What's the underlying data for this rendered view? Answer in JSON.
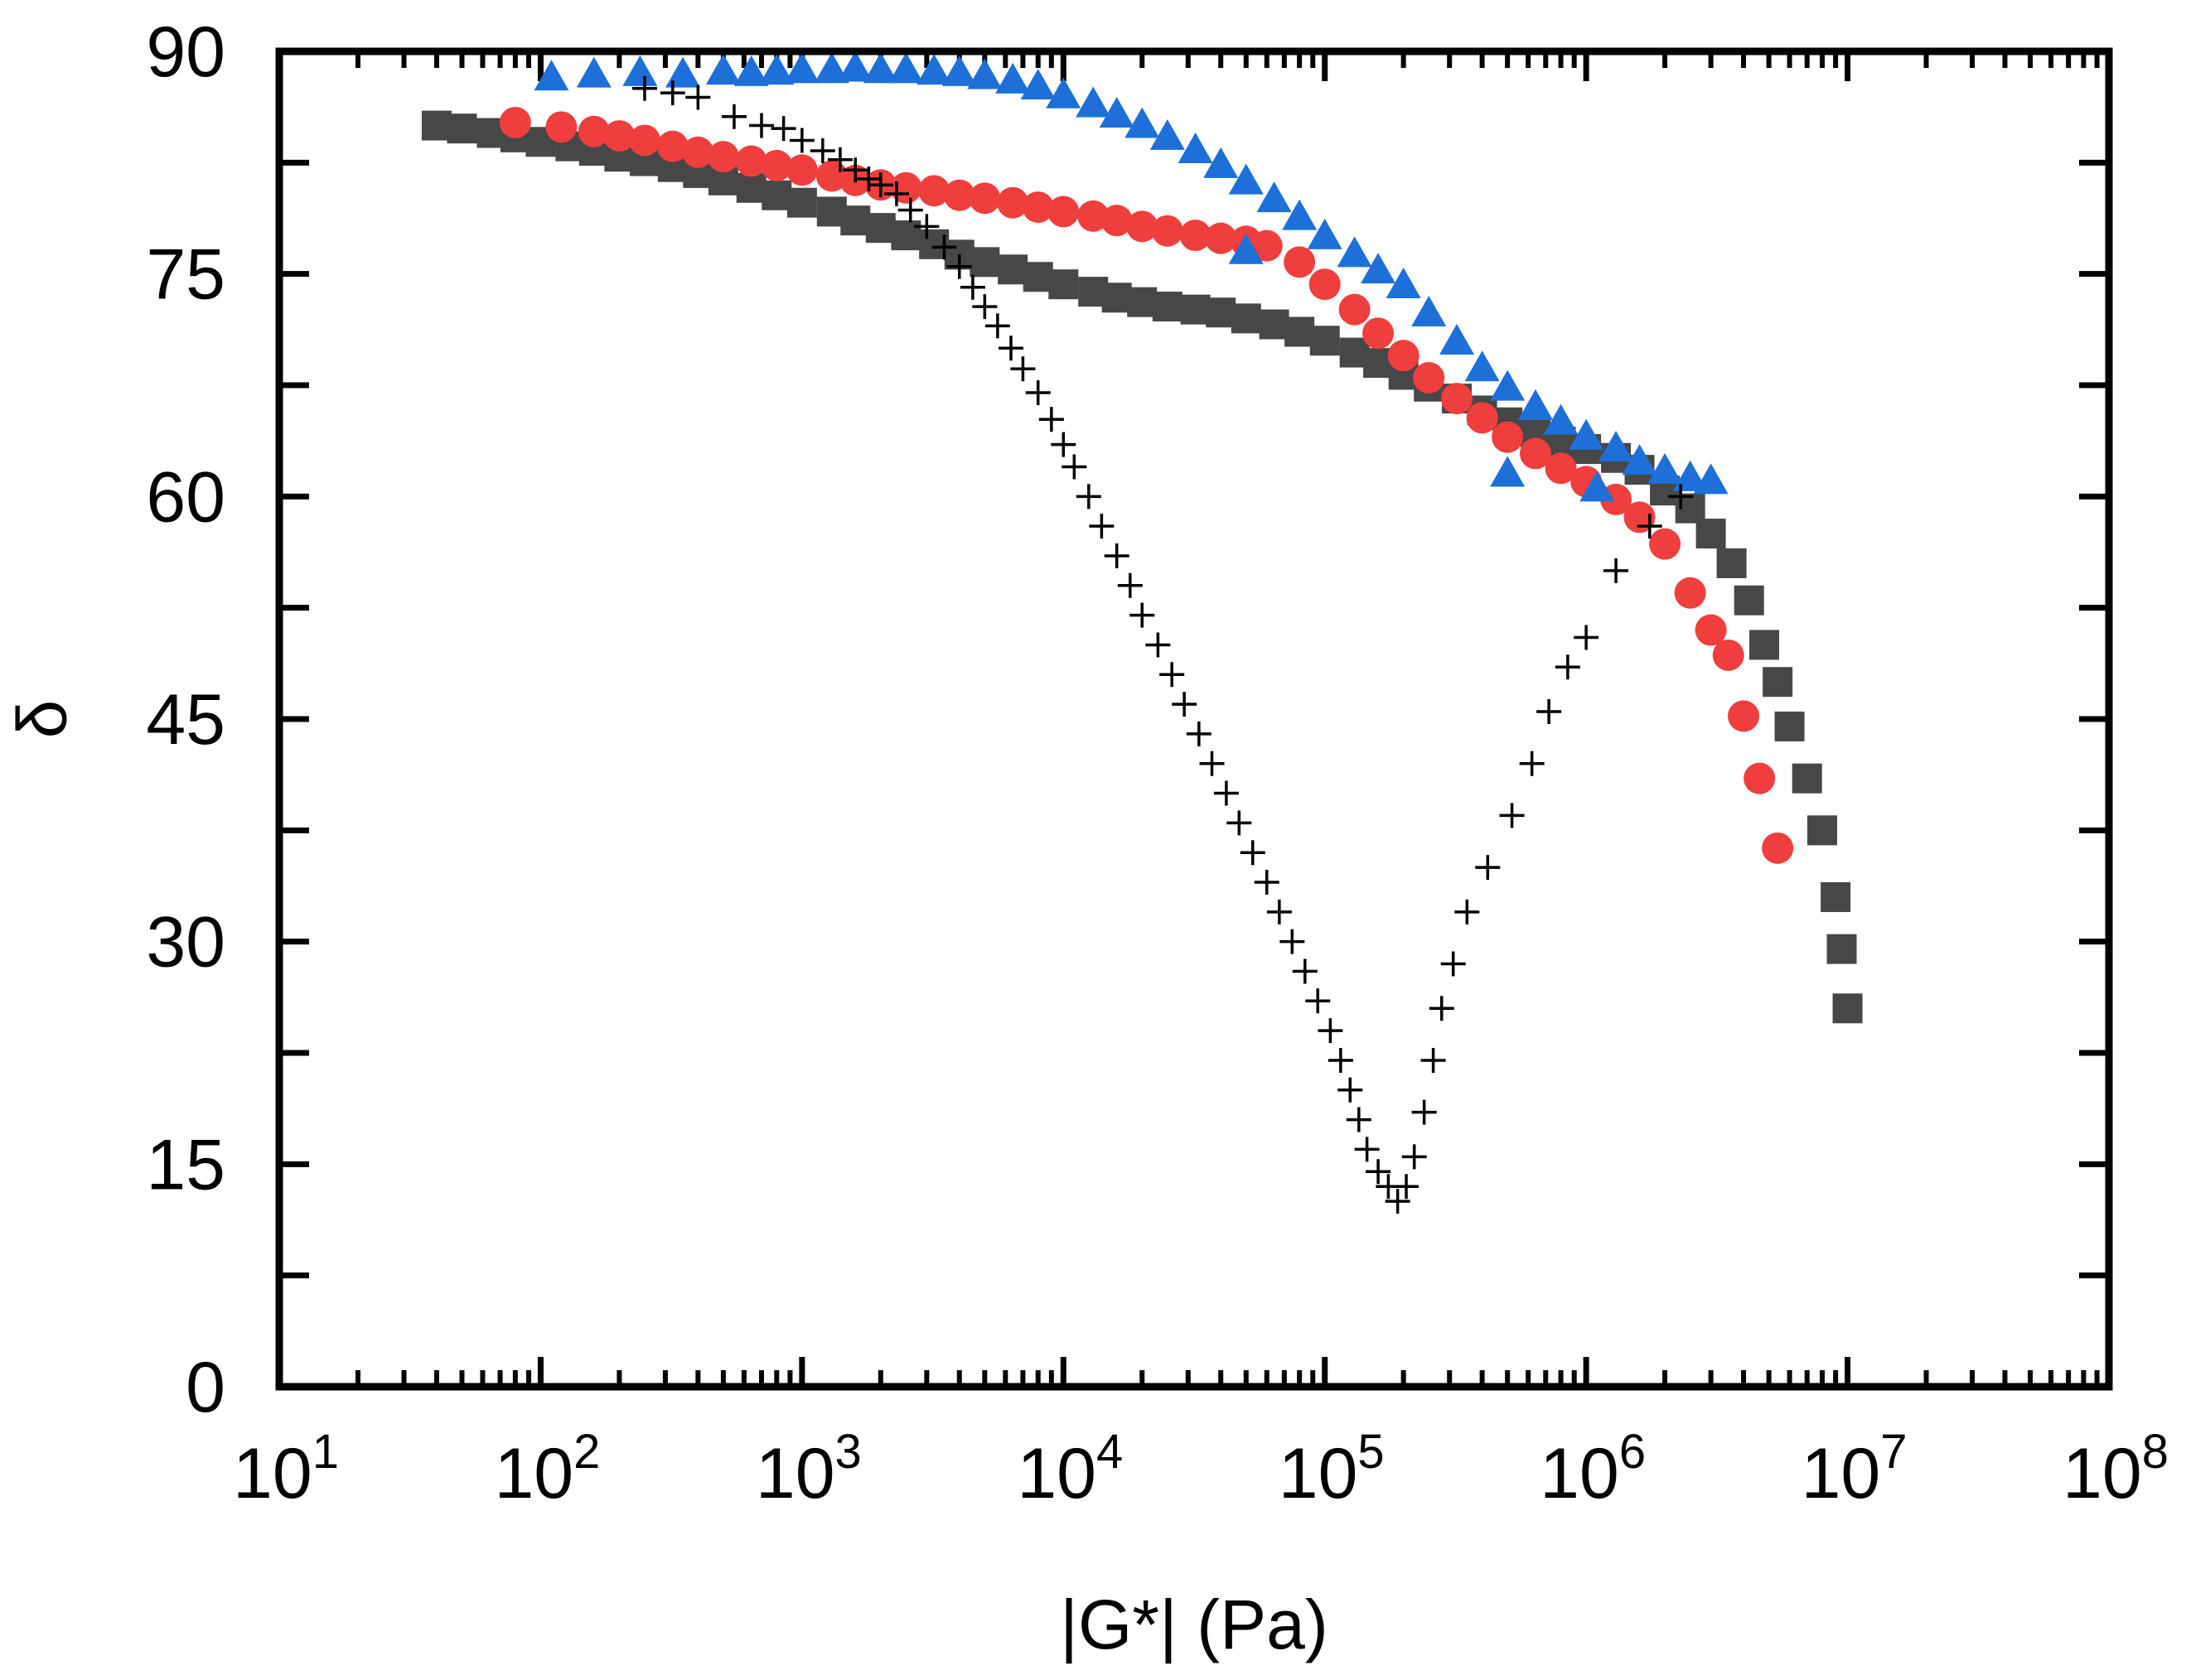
{
  "chart_data": {
    "type": "scatter",
    "title": "",
    "xlabel": "|G*| (Pa)",
    "ylabel": "δ",
    "xscale": "log",
    "xlim": [
      10,
      100000000
    ],
    "ylim": [
      0,
      90
    ],
    "grid": false,
    "x_tick_labels": [
      {
        "value": 10,
        "base": "10",
        "exp": "1"
      },
      {
        "value": 100,
        "base": "10",
        "exp": "2"
      },
      {
        "value": 1000,
        "base": "10",
        "exp": "3"
      },
      {
        "value": 10000,
        "base": "10",
        "exp": "4"
      },
      {
        "value": 100000,
        "base": "10",
        "exp": "5"
      },
      {
        "value": 1000000,
        "base": "10",
        "exp": "6"
      },
      {
        "value": 10000000,
        "base": "10",
        "exp": "7"
      },
      {
        "value": 100000000,
        "base": "10",
        "exp": "8"
      }
    ],
    "y_tick_labels": [
      "0",
      "15",
      "30",
      "45",
      "60",
      "75",
      "90"
    ],
    "y_major_ticks": [
      0,
      15,
      30,
      45,
      60,
      75,
      90
    ],
    "y_minor_ticks": [
      7.5,
      22.5,
      37.5,
      52.5,
      67.5,
      82.5
    ],
    "series": [
      {
        "name": "squares",
        "marker": "square",
        "color": "#474747",
        "points": [
          [
            40,
            85.0
          ],
          [
            50,
            84.8
          ],
          [
            65,
            84.5
          ],
          [
            80,
            84.2
          ],
          [
            100,
            83.9
          ],
          [
            130,
            83.6
          ],
          [
            160,
            83.3
          ],
          [
            200,
            82.9
          ],
          [
            250,
            82.6
          ],
          [
            320,
            82.2
          ],
          [
            400,
            81.8
          ],
          [
            500,
            81.3
          ],
          [
            640,
            80.8
          ],
          [
            800,
            80.3
          ],
          [
            1000,
            79.8
          ],
          [
            1300,
            79.2
          ],
          [
            1600,
            78.6
          ],
          [
            2000,
            78.1
          ],
          [
            2500,
            77.6
          ],
          [
            3200,
            77.0
          ],
          [
            4000,
            76.3
          ],
          [
            5000,
            75.8
          ],
          [
            6400,
            75.3
          ],
          [
            8000,
            74.8
          ],
          [
            10000,
            74.3
          ],
          [
            13000,
            73.8
          ],
          [
            16000,
            73.4
          ],
          [
            20000,
            73.1
          ],
          [
            25000,
            72.8
          ],
          [
            32000,
            72.6
          ],
          [
            40000,
            72.4
          ],
          [
            50000,
            72.0
          ],
          [
            64000,
            71.6
          ],
          [
            80000,
            71.1
          ],
          [
            100000,
            70.5
          ],
          [
            130000,
            69.7
          ],
          [
            160000,
            69.0
          ],
          [
            200000,
            68.2
          ],
          [
            250000,
            67.4
          ],
          [
            320000,
            66.6
          ],
          [
            400000,
            65.8
          ],
          [
            500000,
            65.0
          ],
          [
            640000,
            64.3
          ],
          [
            800000,
            63.7
          ],
          [
            1000000,
            63.2
          ],
          [
            1300000,
            62.6
          ],
          [
            1600000,
            61.8
          ],
          [
            2000000,
            60.4
          ],
          [
            2500000,
            59.2
          ],
          [
            3000000,
            57.5
          ],
          [
            3600000,
            55.5
          ],
          [
            4200000,
            53.0
          ],
          [
            4800000,
            50.0
          ],
          [
            5400000,
            47.5
          ],
          [
            6000000,
            44.5
          ],
          [
            7000000,
            41.0
          ],
          [
            8000000,
            37.5
          ],
          [
            9000000,
            33.0
          ],
          [
            9500000,
            29.5
          ],
          [
            10000000,
            25.5
          ]
        ]
      },
      {
        "name": "circles",
        "marker": "circle",
        "color": "#ef3e3e",
        "points": [
          [
            80,
            85.2
          ],
          [
            120,
            84.9
          ],
          [
            160,
            84.6
          ],
          [
            200,
            84.3
          ],
          [
            250,
            84.0
          ],
          [
            320,
            83.6
          ],
          [
            400,
            83.2
          ],
          [
            500,
            82.9
          ],
          [
            640,
            82.6
          ],
          [
            800,
            82.3
          ],
          [
            1000,
            82.0
          ],
          [
            1300,
            81.6
          ],
          [
            1600,
            81.3
          ],
          [
            2000,
            81.0
          ],
          [
            2500,
            80.8
          ],
          [
            3200,
            80.6
          ],
          [
            4000,
            80.3
          ],
          [
            5000,
            80.1
          ],
          [
            6400,
            79.8
          ],
          [
            8000,
            79.5
          ],
          [
            10000,
            79.2
          ],
          [
            13000,
            78.9
          ],
          [
            16000,
            78.6
          ],
          [
            20000,
            78.2
          ],
          [
            25000,
            77.9
          ],
          [
            32000,
            77.6
          ],
          [
            40000,
            77.4
          ],
          [
            50000,
            77.2
          ],
          [
            60000,
            76.9
          ],
          [
            80000,
            75.8
          ],
          [
            100000,
            74.3
          ],
          [
            130000,
            72.6
          ],
          [
            160000,
            71.0
          ],
          [
            200000,
            69.5
          ],
          [
            250000,
            68.0
          ],
          [
            320000,
            66.6
          ],
          [
            400000,
            65.3
          ],
          [
            500000,
            64.0
          ],
          [
            640000,
            62.9
          ],
          [
            800000,
            61.9
          ],
          [
            1000000,
            61.0
          ],
          [
            1300000,
            59.8
          ],
          [
            1600000,
            58.6
          ],
          [
            2000000,
            56.8
          ],
          [
            2500000,
            53.5
          ],
          [
            3000000,
            51.0
          ],
          [
            3500000,
            49.3
          ],
          [
            4000000,
            45.2
          ],
          [
            4600000,
            41.0
          ],
          [
            5400000,
            36.3
          ]
        ]
      },
      {
        "name": "triangles",
        "marker": "triangle",
        "color": "#1f6fd8",
        "points": [
          [
            110,
            88.2
          ],
          [
            160,
            88.4
          ],
          [
            240,
            88.5
          ],
          [
            350,
            88.4
          ],
          [
            500,
            88.6
          ],
          [
            640,
            88.5
          ],
          [
            800,
            88.6
          ],
          [
            1000,
            88.7
          ],
          [
            1300,
            88.7
          ],
          [
            1600,
            88.8
          ],
          [
            2000,
            88.7
          ],
          [
            2500,
            88.7
          ],
          [
            3200,
            88.6
          ],
          [
            4000,
            88.5
          ],
          [
            5000,
            88.3
          ],
          [
            6400,
            88.0
          ],
          [
            8000,
            87.6
          ],
          [
            10000,
            87.0
          ],
          [
            13000,
            86.4
          ],
          [
            16000,
            85.7
          ],
          [
            20000,
            85.0
          ],
          [
            25000,
            84.2
          ],
          [
            32000,
            83.3
          ],
          [
            40000,
            82.3
          ],
          [
            50000,
            81.2
          ],
          [
            64000,
            80.0
          ],
          [
            80000,
            78.8
          ],
          [
            100000,
            77.5
          ],
          [
            130000,
            76.3
          ],
          [
            160000,
            75.2
          ],
          [
            200000,
            74.2
          ],
          [
            250000,
            72.3
          ],
          [
            320000,
            70.4
          ],
          [
            400000,
            68.6
          ],
          [
            500000,
            67.3
          ],
          [
            640000,
            66.0
          ],
          [
            800000,
            65.0
          ],
          [
            1000000,
            64.0
          ],
          [
            1300000,
            63.2
          ],
          [
            1600000,
            62.3
          ],
          [
            2000000,
            61.7
          ],
          [
            2500000,
            61.2
          ],
          [
            3000000,
            61.0
          ],
          [
            50000,
            76.5
          ],
          [
            500000,
            61.5
          ],
          [
            1100000,
            60.5
          ]
        ]
      },
      {
        "name": "crosses",
        "marker": "plus",
        "color": "#000000",
        "points": [
          [
            250,
            87.5
          ],
          [
            320,
            87.2
          ],
          [
            400,
            86.9
          ],
          [
            550,
            85.6
          ],
          [
            700,
            85.0
          ],
          [
            850,
            84.8
          ],
          [
            1000,
            84.0
          ],
          [
            1200,
            83.3
          ],
          [
            1400,
            82.7
          ],
          [
            1600,
            82.0
          ],
          [
            1800,
            81.4
          ],
          [
            2000,
            81.0
          ],
          [
            2300,
            80.4
          ],
          [
            2600,
            79.3
          ],
          [
            3000,
            78.2
          ],
          [
            3500,
            76.8
          ],
          [
            4000,
            75.5
          ],
          [
            4500,
            74.1
          ],
          [
            5000,
            72.8
          ],
          [
            5600,
            71.5
          ],
          [
            6300,
            70.0
          ],
          [
            7000,
            68.6
          ],
          [
            8000,
            67.0
          ],
          [
            9000,
            65.2
          ],
          [
            10000,
            63.5
          ],
          [
            11000,
            62.0
          ],
          [
            12500,
            60.0
          ],
          [
            14000,
            58.0
          ],
          [
            16000,
            56.0
          ],
          [
            18000,
            54.0
          ],
          [
            20000,
            52.0
          ],
          [
            23000,
            50.0
          ],
          [
            26000,
            48.0
          ],
          [
            29000,
            46.0
          ],
          [
            33000,
            44.0
          ],
          [
            37000,
            42.0
          ],
          [
            42000,
            40.0
          ],
          [
            47000,
            38.0
          ],
          [
            53000,
            36.0
          ],
          [
            60000,
            34.0
          ],
          [
            67000,
            32.0
          ],
          [
            75000,
            30.0
          ],
          [
            84000,
            28.0
          ],
          [
            94000,
            26.0
          ],
          [
            105000,
            24.0
          ],
          [
            115000,
            22.0
          ],
          [
            125000,
            20.0
          ],
          [
            135000,
            18.0
          ],
          [
            145000,
            16.0
          ],
          [
            160000,
            14.5
          ],
          [
            175000,
            13.5
          ],
          [
            190000,
            12.5
          ],
          [
            205000,
            13.5
          ],
          [
            220000,
            15.5
          ],
          [
            240000,
            18.5
          ],
          [
            260000,
            22.0
          ],
          [
            280000,
            25.5
          ],
          [
            310000,
            28.5
          ],
          [
            350000,
            32.0
          ],
          [
            420000,
            35.0
          ],
          [
            520000,
            38.5
          ],
          [
            620000,
            42.0
          ],
          [
            720000,
            45.5
          ],
          [
            850000,
            48.5
          ],
          [
            1000000,
            50.5
          ],
          [
            1300000,
            55.0
          ],
          [
            1750000,
            58.0
          ],
          [
            2300000,
            60.0
          ]
        ]
      }
    ]
  }
}
